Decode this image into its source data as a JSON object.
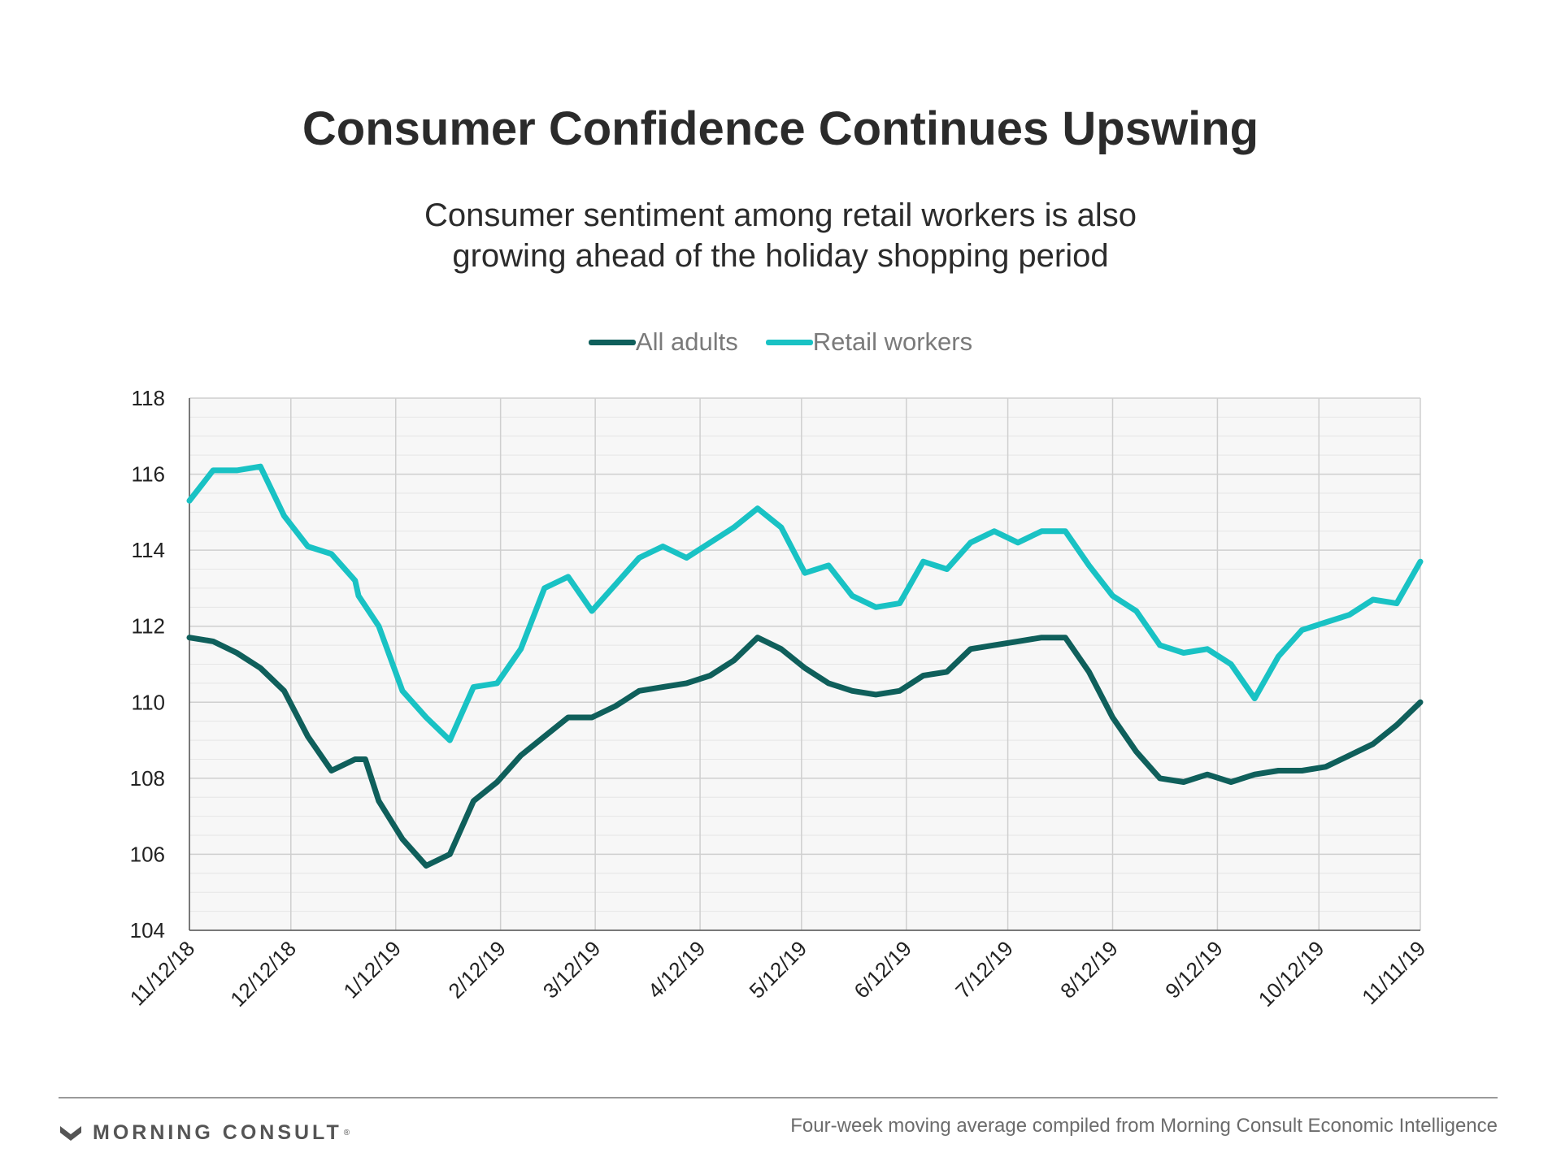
{
  "title": "Consumer Confidence Continues Upswing",
  "subtitle_line1": "Consumer sentiment among retail workers is also",
  "subtitle_line2": "growing ahead of the holiday shopping period",
  "footer": {
    "brand": "MORNING CONSULT",
    "brand_mark": "®",
    "source": "Four-week moving average compiled from Morning Consult Economic Intelligence"
  },
  "colors": {
    "all_adults": "#0f5f5b",
    "retail_workers": "#19c2c4",
    "grid_major": "#cfcfcf",
    "grid_minor": "#e6e6e6",
    "plot_bg": "#f7f7f7",
    "brand_mark": "#5a5a5a"
  },
  "brand_icon": "morning-consult-chevron-icon",
  "chart_data": {
    "type": "line",
    "xlabel": "",
    "ylabel": "",
    "ylim": [
      104,
      118
    ],
    "yticks": [
      104,
      106,
      108,
      110,
      112,
      114,
      116,
      118
    ],
    "x_tick_labels": [
      "11/12/18",
      "12/12/18",
      "1/12/19",
      "2/12/19",
      "3/12/19",
      "4/12/19",
      "5/12/19",
      "6/12/19",
      "7/12/19",
      "8/12/19",
      "9/12/19",
      "10/12/19",
      "11/11/19"
    ],
    "x_tick_positions": [
      0,
      30,
      61,
      92,
      120,
      151,
      181,
      212,
      242,
      273,
      304,
      334,
      364
    ],
    "x_range": [
      0,
      364
    ],
    "grid": true,
    "legend_position": "top-center",
    "series": [
      {
        "name": "All adults",
        "x": [
          0,
          7,
          14,
          21,
          28,
          35,
          42,
          49,
          52,
          56,
          63,
          70,
          77,
          84,
          91,
          98,
          105,
          112,
          119,
          126,
          133,
          140,
          147,
          154,
          161,
          168,
          175,
          182,
          189,
          196,
          203,
          210,
          217,
          224,
          231,
          238,
          245,
          252,
          259,
          266,
          273,
          280,
          287,
          294,
          301,
          308,
          315,
          322,
          329,
          336,
          343,
          350,
          357,
          364
        ],
        "values": [
          111.7,
          111.6,
          111.3,
          110.9,
          110.3,
          109.1,
          108.2,
          108.5,
          108.5,
          107.4,
          106.4,
          105.7,
          106.0,
          107.4,
          107.9,
          108.6,
          109.1,
          109.6,
          109.6,
          109.9,
          110.3,
          110.4,
          110.5,
          110.7,
          111.1,
          111.7,
          111.4,
          110.9,
          110.5,
          110.3,
          110.2,
          110.3,
          110.7,
          110.8,
          111.4,
          111.5,
          111.6,
          111.7,
          111.7,
          110.8,
          109.6,
          108.7,
          108.0,
          107.9,
          108.1,
          107.9,
          108.1,
          108.2,
          108.2,
          108.3,
          108.6,
          108.9,
          109.4,
          110.0
        ]
      },
      {
        "name": "Retail workers",
        "x": [
          0,
          7,
          14,
          21,
          28,
          35,
          42,
          49,
          50,
          56,
          63,
          70,
          77,
          84,
          91,
          98,
          105,
          112,
          119,
          126,
          133,
          140,
          147,
          154,
          161,
          168,
          175,
          182,
          189,
          196,
          203,
          210,
          217,
          224,
          231,
          238,
          245,
          252,
          259,
          266,
          273,
          280,
          287,
          294,
          301,
          308,
          315,
          322,
          329,
          336,
          343,
          350,
          357,
          364
        ],
        "values": [
          115.3,
          116.1,
          116.1,
          116.2,
          114.9,
          114.1,
          113.9,
          113.2,
          112.8,
          112.0,
          110.3,
          109.6,
          109.0,
          110.4,
          110.5,
          111.4,
          113.0,
          113.3,
          112.4,
          113.1,
          113.8,
          114.1,
          113.8,
          114.2,
          114.6,
          115.1,
          114.6,
          113.4,
          113.6,
          112.8,
          112.5,
          112.6,
          113.7,
          113.5,
          114.2,
          114.5,
          114.2,
          114.5,
          114.5,
          113.6,
          112.8,
          112.4,
          111.5,
          111.3,
          111.4,
          111.0,
          110.1,
          111.2,
          111.9,
          112.1,
          112.3,
          112.7,
          112.6,
          113.7
        ]
      }
    ]
  }
}
